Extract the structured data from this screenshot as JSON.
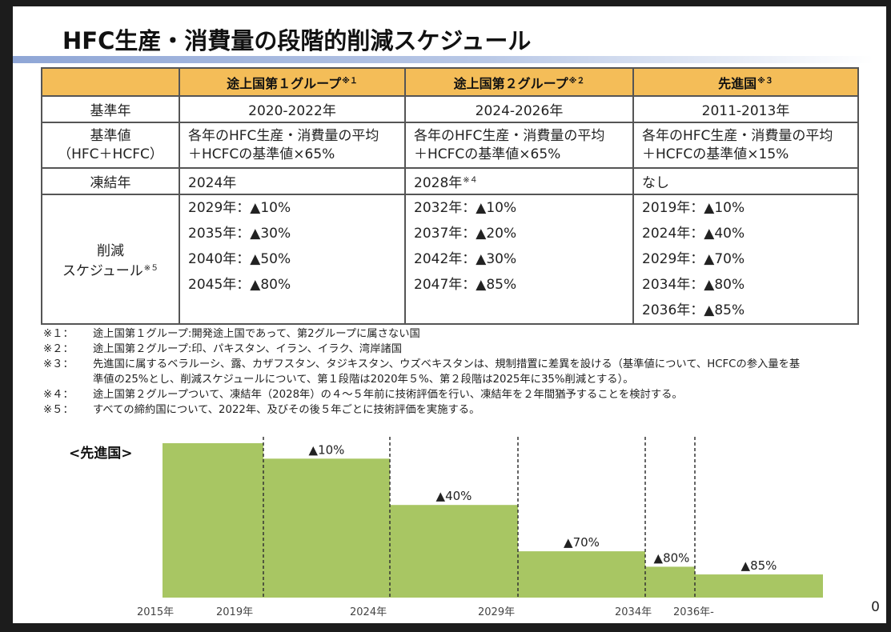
{
  "title": "HFC生産・消費量の段階的削減スケジュール",
  "table": {
    "headers": [
      {
        "label": "",
        "note": ""
      },
      {
        "label": "途上国第１グループ",
        "note": "※１"
      },
      {
        "label": "途上国第２グループ",
        "note": "※２"
      },
      {
        "label": "先進国",
        "note": "※３"
      }
    ],
    "rows": {
      "base_year": {
        "label": "基準年",
        "values": [
          "2020-2022年",
          "2024-2026年",
          "2011-2013年"
        ]
      },
      "base_value": {
        "label_line1": "基準値",
        "label_line2": "（HFC＋HCFC）",
        "values": [
          {
            "line1": "各年のHFC生産・消費量の平均",
            "line2": "＋HCFCの基準値×65%"
          },
          {
            "line1": "各年のHFC生産・消費量の平均",
            "line2": "＋HCFCの基準値×65%"
          },
          {
            "line1": "各年のHFC生産・消費量の平均",
            "line2": "＋HCFCの基準値×15%"
          }
        ]
      },
      "freeze_year": {
        "label": "凍結年",
        "values": [
          {
            "text": "2024年",
            "note": ""
          },
          {
            "text": "2028年",
            "note": "※４"
          },
          {
            "text": "なし",
            "note": ""
          }
        ]
      },
      "schedule": {
        "label_line1": "削減",
        "label_line2": "スケジュール",
        "label_note": "※５",
        "values": [
          [
            "2029年：▲10%",
            "2035年：▲30%",
            "2040年：▲50%",
            "2045年：▲80%"
          ],
          [
            "2032年：▲10%",
            "2037年：▲20%",
            "2042年：▲30%",
            "2047年：▲85%"
          ],
          [
            "2019年：▲10%",
            "2024年：▲40%",
            "2029年：▲70%",
            "2034年：▲80%",
            "2036年：▲85%"
          ]
        ]
      }
    }
  },
  "notes": [
    {
      "mark": "※１：",
      "lines": [
        "途上国第１グループ:開発途上国であって、第2グループに属さない国"
      ]
    },
    {
      "mark": "※２：",
      "lines": [
        "途上国第２グループ:印、パキスタン、イラン、イラク、湾岸諸国"
      ]
    },
    {
      "mark": "※３：",
      "lines": [
        "先進国に属するベラルーシ、露、カザフスタン、タジキスタン、ウズベキスタンは、規制措置に差異を設ける（基準値について、HCFCの参入量を基",
        "準値の25%とし、削減スケジュールについて、第１段階は2020年５%、第２段階は2025年に35%削減とする）。"
      ]
    },
    {
      "mark": "※４：",
      "lines": [
        "途上国第２グループついて、凍結年（2028年）の４～５年前に技術評価を行い、凍結年を２年間猶予することを検討する。"
      ]
    },
    {
      "mark": "※５：",
      "lines": [
        "すべての締約国について、2022年、及びその後５年ごとに技術評価を実施する。"
      ]
    }
  ],
  "chart_data": {
    "type": "bar",
    "title": "<先進国>",
    "xlabel": "",
    "ylabel": "",
    "ylim": [
      0,
      100
    ],
    "grid": false,
    "bar_color": "#a8c663",
    "categories": [
      "2015年",
      "2019年",
      "2024年",
      "2029年",
      "2034年",
      "2036年-"
    ],
    "x_ticks": [
      "2015年",
      "2019年",
      "2024年",
      "2029年",
      "2034年",
      "2036年-"
    ],
    "segments": [
      {
        "start": "2015年",
        "end": "2019年",
        "level_percent": 100,
        "label": ""
      },
      {
        "start": "2019年",
        "end": "2024年",
        "level_percent": 90,
        "label": "▲10%"
      },
      {
        "start": "2024年",
        "end": "2029年",
        "level_percent": 60,
        "label": "▲40%"
      },
      {
        "start": "2029年",
        "end": "2034年",
        "level_percent": 30,
        "label": "▲70%"
      },
      {
        "start": "2034年",
        "end": "2036年",
        "level_percent": 20,
        "label": "▲80%"
      },
      {
        "start": "2036年",
        "end": "",
        "level_percent": 15,
        "label": "▲85%"
      }
    ],
    "values": [
      100,
      90,
      60,
      30,
      20,
      15
    ]
  },
  "page_number": "0"
}
